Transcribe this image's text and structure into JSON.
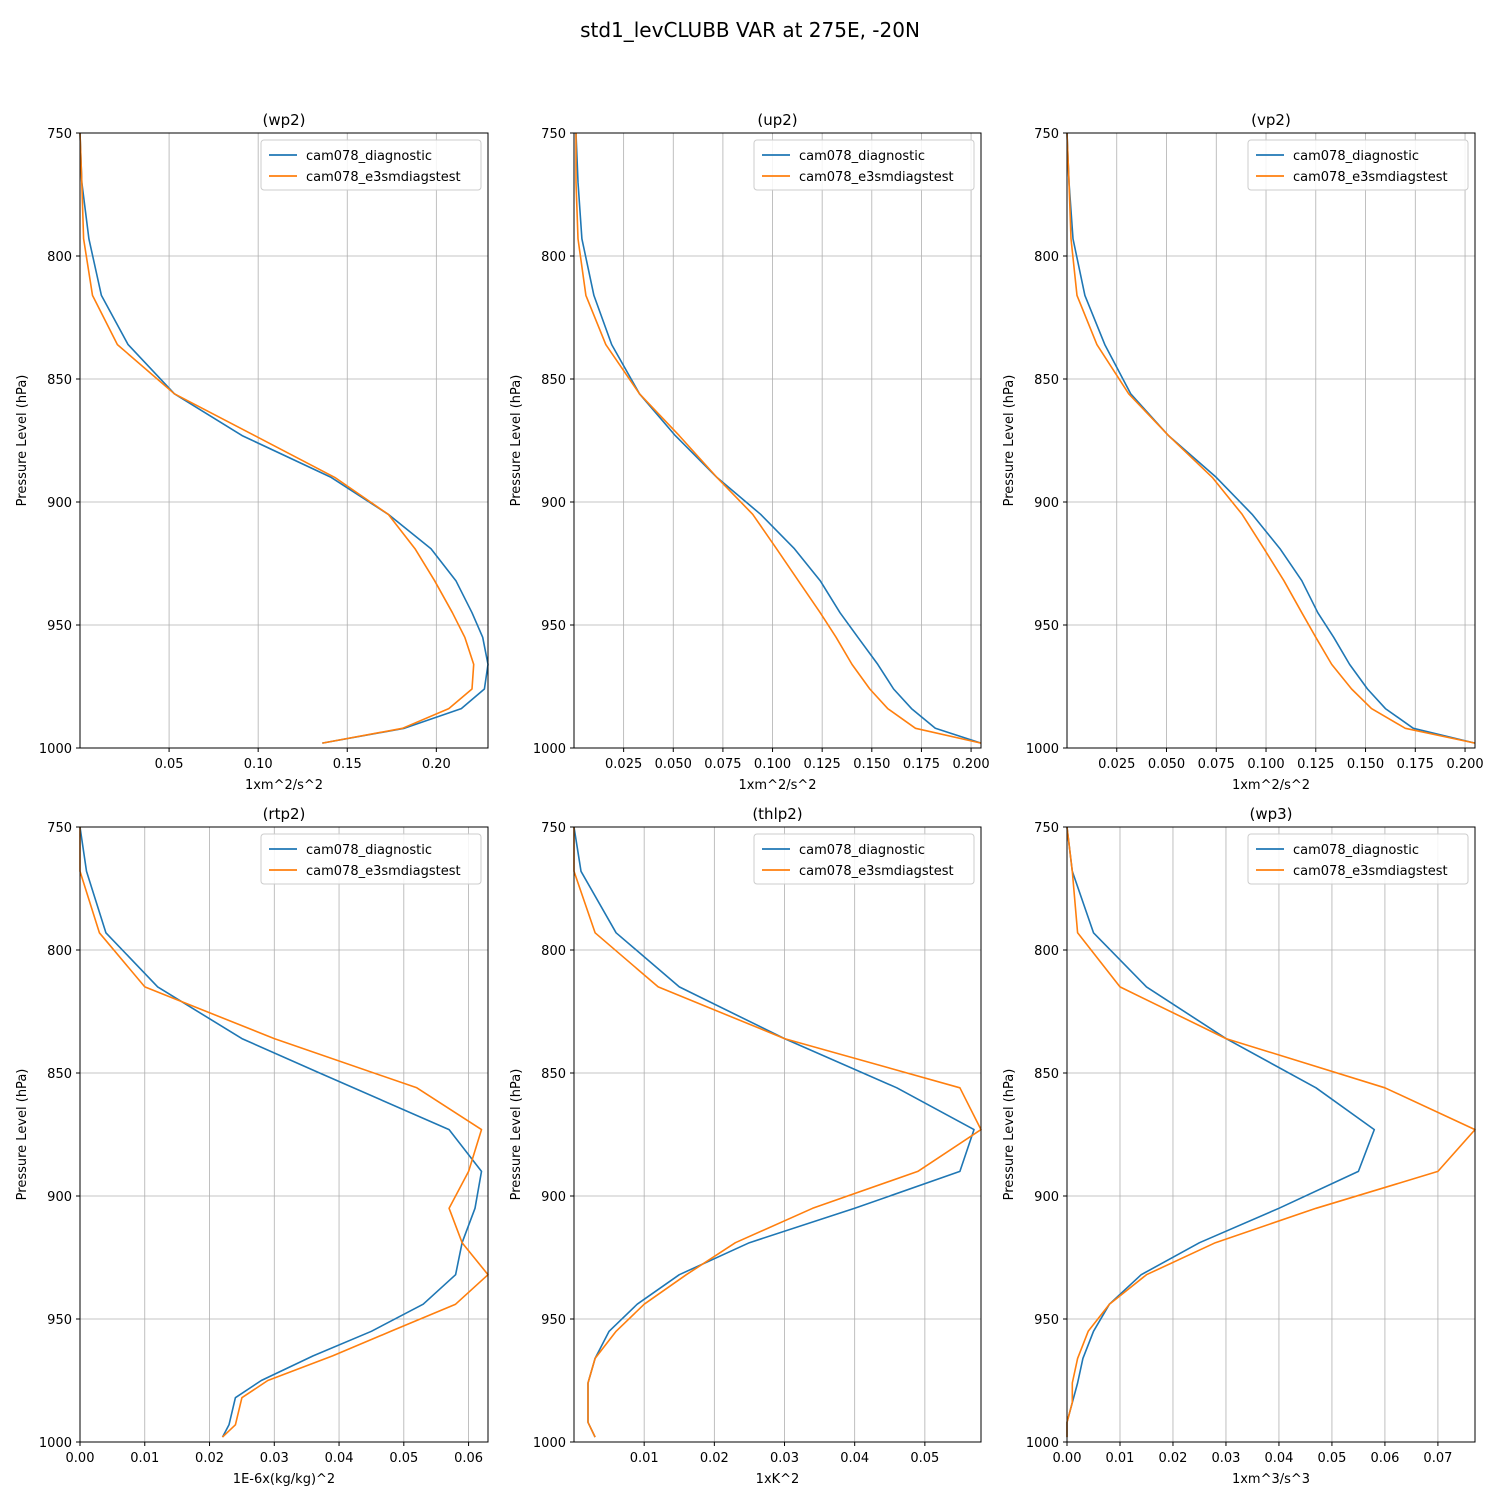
{
  "figure": {
    "title": "std1_levCLUBB VAR at 275E, -20N",
    "colors": {
      "diagnostic": "#1f77b4",
      "e3smdiagstest": "#ff7f0e",
      "grid": "#b0b0b0"
    }
  },
  "chart_data": [
    {
      "type": "line",
      "title": "(wp2)",
      "xlabel": "1xm^2/s^2",
      "ylabel": "Pressure Level (hPa)",
      "xlim": [
        0.0,
        0.229
      ],
      "ylim": [
        1000,
        750
      ],
      "y_inverted": true,
      "xticks": [
        0.05,
        0.1,
        0.15,
        0.2
      ],
      "xtick_labels": [
        "0.05",
        "0.10",
        "0.15",
        "0.20"
      ],
      "yticks": [
        750,
        800,
        850,
        900,
        950,
        1000
      ],
      "grid": true,
      "legend_position": "top-right",
      "series": [
        {
          "name": "cam078_diagnostic",
          "x": [
            0.0,
            0.001,
            0.005,
            0.012,
            0.027,
            0.053,
            0.091,
            0.141,
            0.173,
            0.197,
            0.211,
            0.22,
            0.226,
            0.229,
            0.227,
            0.214,
            0.182,
            0.136
          ],
          "y": [
            750,
            770,
            793,
            816,
            836,
            856,
            873,
            890,
            905,
            919,
            932,
            945,
            955,
            966,
            976,
            984,
            992,
            998
          ]
        },
        {
          "name": "cam078_e3smdiagstest",
          "x": [
            0.0,
            0.001,
            0.002,
            0.007,
            0.021,
            0.053,
            0.098,
            0.143,
            0.173,
            0.188,
            0.199,
            0.209,
            0.216,
            0.221,
            0.22,
            0.207,
            0.181,
            0.136
          ],
          "y": [
            750,
            770,
            793,
            816,
            836,
            856,
            873,
            890,
            905,
            919,
            932,
            945,
            955,
            966,
            976,
            984,
            992,
            998
          ]
        }
      ]
    },
    {
      "type": "line",
      "title": "(up2)",
      "xlabel": "1xm^2/s^2",
      "ylabel": "Pressure Level (hPa)",
      "xlim": [
        0.0,
        0.205
      ],
      "ylim": [
        1000,
        750
      ],
      "y_inverted": true,
      "xticks": [
        0.025,
        0.05,
        0.075,
        0.1,
        0.125,
        0.15,
        0.175,
        0.2
      ],
      "xtick_labels": [
        "0.025",
        "0.050",
        "0.075",
        "0.100",
        "0.125",
        "0.150",
        "0.175",
        "0.200"
      ],
      "yticks": [
        750,
        800,
        850,
        900,
        950,
        1000
      ],
      "grid": true,
      "legend_position": "top-right",
      "series": [
        {
          "name": "cam078_diagnostic",
          "x": [
            0.001,
            0.002,
            0.004,
            0.01,
            0.019,
            0.033,
            0.051,
            0.072,
            0.094,
            0.111,
            0.124,
            0.134,
            0.143,
            0.153,
            0.161,
            0.17,
            0.182,
            0.205
          ],
          "y": [
            750,
            770,
            793,
            816,
            836,
            856,
            873,
            890,
            905,
            919,
            932,
            945,
            955,
            966,
            976,
            984,
            992,
            998
          ]
        },
        {
          "name": "cam078_e3smdiagstest",
          "x": [
            0.001,
            0.001,
            0.002,
            0.006,
            0.016,
            0.033,
            0.053,
            0.072,
            0.09,
            0.102,
            0.113,
            0.124,
            0.132,
            0.14,
            0.149,
            0.158,
            0.172,
            0.205
          ],
          "y": [
            750,
            770,
            793,
            816,
            836,
            856,
            873,
            890,
            905,
            919,
            932,
            945,
            955,
            966,
            976,
            984,
            992,
            998
          ]
        }
      ]
    },
    {
      "type": "line",
      "title": "(vp2)",
      "xlabel": "1xm^2/s^2",
      "ylabel": "Pressure Level (hPa)",
      "xlim": [
        0.0,
        0.205
      ],
      "ylim": [
        1000,
        750
      ],
      "y_inverted": true,
      "xticks": [
        0.025,
        0.05,
        0.075,
        0.1,
        0.125,
        0.15,
        0.175,
        0.2
      ],
      "xtick_labels": [
        "0.025",
        "0.050",
        "0.075",
        "0.100",
        "0.125",
        "0.150",
        "0.175",
        "0.200"
      ],
      "yticks": [
        750,
        800,
        850,
        900,
        950,
        1000
      ],
      "grid": true,
      "legend_position": "top-right",
      "series": [
        {
          "name": "cam078_diagnostic",
          "x": [
            0.0,
            0.001,
            0.003,
            0.009,
            0.019,
            0.032,
            0.051,
            0.075,
            0.093,
            0.107,
            0.118,
            0.126,
            0.134,
            0.142,
            0.151,
            0.16,
            0.174,
            0.205
          ],
          "y": [
            750,
            770,
            793,
            816,
            836,
            856,
            873,
            890,
            905,
            919,
            932,
            945,
            955,
            966,
            976,
            984,
            992,
            998
          ]
        },
        {
          "name": "cam078_e3smdiagstest",
          "x": [
            0.0,
            0.001,
            0.002,
            0.005,
            0.015,
            0.031,
            0.051,
            0.073,
            0.088,
            0.099,
            0.109,
            0.118,
            0.125,
            0.133,
            0.143,
            0.153,
            0.17,
            0.205
          ],
          "y": [
            750,
            770,
            793,
            816,
            836,
            856,
            873,
            890,
            905,
            919,
            932,
            945,
            955,
            966,
            976,
            984,
            992,
            998
          ]
        }
      ]
    },
    {
      "type": "line",
      "title": "(rtp2)",
      "xlabel": "1E-6x(kg/kg)^2",
      "ylabel": "Pressure Level (hPa)",
      "xlim": [
        0.0,
        0.063
      ],
      "ylim": [
        1000,
        750
      ],
      "y_inverted": true,
      "xticks": [
        0.0,
        0.01,
        0.02,
        0.03,
        0.04,
        0.05,
        0.06
      ],
      "xtick_labels": [
        "0.00",
        "0.01",
        "0.02",
        "0.03",
        "0.04",
        "0.05",
        "0.06"
      ],
      "yticks": [
        750,
        800,
        850,
        900,
        950,
        1000
      ],
      "grid": true,
      "legend_position": "top-right",
      "series": [
        {
          "name": "cam078_diagnostic",
          "x": [
            0.0,
            0.001,
            0.004,
            0.012,
            0.025,
            0.037,
            0.057,
            0.062,
            0.061,
            0.059,
            0.058,
            0.053,
            0.045,
            0.036,
            0.028,
            0.024,
            0.023,
            0.022
          ],
          "y": [
            750,
            768,
            793,
            815,
            836,
            850,
            873,
            890,
            905,
            919,
            932,
            944,
            955,
            965,
            975,
            982,
            993,
            998
          ]
        },
        {
          "name": "cam078_e3smdiagstest",
          "x": [
            0.0,
            0.0,
            0.003,
            0.01,
            0.03,
            0.052,
            0.062,
            0.06,
            0.057,
            0.059,
            0.063,
            0.058,
            0.048,
            0.039,
            0.029,
            0.025,
            0.024,
            0.022
          ],
          "y": [
            750,
            768,
            793,
            815,
            836,
            856,
            873,
            890,
            905,
            919,
            932,
            944,
            955,
            965,
            975,
            982,
            993,
            998
          ]
        }
      ]
    },
    {
      "type": "line",
      "title": "(thlp2)",
      "xlabel": "1xK^2",
      "ylabel": "Pressure Level (hPa)",
      "xlim": [
        0.0,
        0.058
      ],
      "ylim": [
        1000,
        750
      ],
      "y_inverted": true,
      "xticks": [
        0.01,
        0.02,
        0.03,
        0.04,
        0.05
      ],
      "xtick_labels": [
        "0.01",
        "0.02",
        "0.03",
        "0.04",
        "0.05"
      ],
      "yticks": [
        750,
        800,
        850,
        900,
        950,
        1000
      ],
      "grid": true,
      "legend_position": "top-right",
      "series": [
        {
          "name": "cam078_diagnostic",
          "x": [
            0.0,
            0.001,
            0.006,
            0.015,
            0.03,
            0.046,
            0.057,
            0.055,
            0.04,
            0.025,
            0.015,
            0.009,
            0.005,
            0.003,
            0.002,
            0.002,
            0.002,
            0.003
          ],
          "y": [
            750,
            768,
            793,
            815,
            836,
            856,
            873,
            890,
            905,
            919,
            932,
            944,
            955,
            966,
            976,
            984,
            992,
            998
          ]
        },
        {
          "name": "cam078_e3smdiagstest",
          "x": [
            0.0,
            0.0,
            0.003,
            0.012,
            0.03,
            0.055,
            0.058,
            0.049,
            0.034,
            0.023,
            0.016,
            0.01,
            0.006,
            0.003,
            0.002,
            0.002,
            0.002,
            0.003
          ],
          "y": [
            750,
            768,
            793,
            815,
            836,
            856,
            873,
            890,
            905,
            919,
            932,
            944,
            955,
            966,
            976,
            984,
            992,
            998
          ]
        }
      ]
    },
    {
      "type": "line",
      "title": "(wp3)",
      "xlabel": "1xm^3/s^3",
      "ylabel": "Pressure Level (hPa)",
      "xlim": [
        0.0,
        0.077
      ],
      "ylim": [
        1000,
        750
      ],
      "y_inverted": true,
      "xticks": [
        0.0,
        0.01,
        0.02,
        0.03,
        0.04,
        0.05,
        0.06,
        0.07
      ],
      "xtick_labels": [
        "0.00",
        "0.01",
        "0.02",
        "0.03",
        "0.04",
        "0.05",
        "0.06",
        "0.07"
      ],
      "yticks": [
        750,
        800,
        850,
        900,
        950,
        1000
      ],
      "grid": true,
      "legend_position": "top-right",
      "series": [
        {
          "name": "cam078_diagnostic",
          "x": [
            0.0,
            0.001,
            0.005,
            0.015,
            0.03,
            0.047,
            0.058,
            0.055,
            0.04,
            0.025,
            0.014,
            0.008,
            0.005,
            0.003,
            0.002,
            0.001,
            0.0,
            0.0
          ],
          "y": [
            750,
            768,
            793,
            815,
            836,
            856,
            873,
            890,
            905,
            919,
            932,
            944,
            955,
            966,
            976,
            984,
            992,
            998
          ]
        },
        {
          "name": "cam078_e3smdiagstest",
          "x": [
            0.0,
            0.001,
            0.002,
            0.01,
            0.03,
            0.06,
            0.077,
            0.07,
            0.047,
            0.028,
            0.015,
            0.008,
            0.004,
            0.002,
            0.001,
            0.001,
            0.0,
            0.0
          ],
          "y": [
            750,
            768,
            793,
            815,
            836,
            856,
            873,
            890,
            905,
            919,
            932,
            944,
            955,
            966,
            976,
            984,
            992,
            998
          ]
        }
      ]
    }
  ]
}
